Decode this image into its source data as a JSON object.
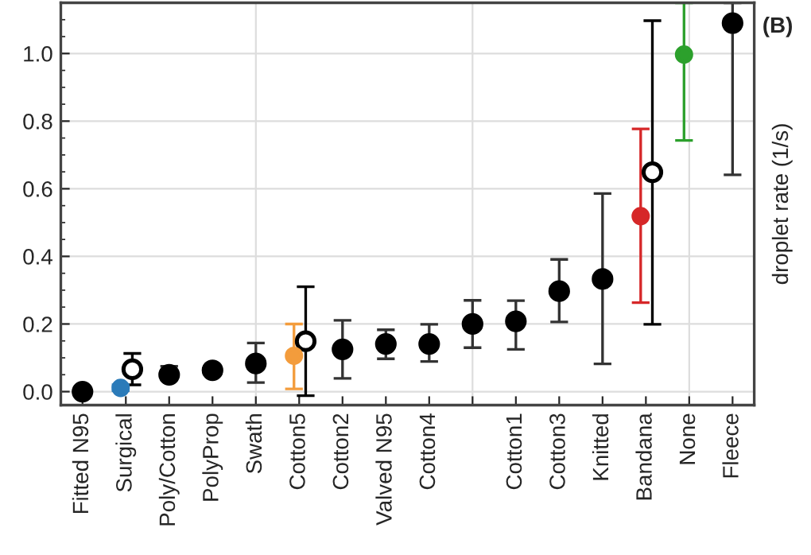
{
  "chart_data": {
    "type": "scatter",
    "categories": [
      "Fitted N95",
      "Surgical",
      "Poly/Cotton",
      "PolyProp",
      "Swath",
      "Cotton5",
      "Cotton2",
      "Valved N95",
      "Cotton4",
      null,
      "Cotton1",
      "Cotton3",
      "Knitted",
      "Bandana",
      "None",
      "Fleece"
    ],
    "series": [
      {
        "color": "#000000",
        "values": [
          0.0,
          null,
          0.05,
          0.063,
          0.083,
          null,
          0.125,
          0.141,
          0.141,
          0.2,
          0.208,
          0.297,
          0.333,
          null,
          null,
          1.09
        ],
        "errors": [
          null,
          null,
          [
            0.035,
            0.075
          ],
          null,
          [
            0.027,
            0.144
          ],
          null,
          [
            0.039,
            0.211
          ],
          [
            0.097,
            0.183
          ],
          [
            0.089,
            0.199
          ],
          [
            0.13,
            0.27
          ],
          [
            0.125,
            0.269
          ],
          [
            0.206,
            0.391
          ],
          [
            0.082,
            0.586
          ],
          null,
          null,
          [
            0.641,
            1.15
          ]
        ]
      },
      {
        "color": "#000000",
        "values": [
          null,
          0.066,
          null,
          null,
          null,
          0.149,
          null,
          null,
          null,
          null,
          null,
          null,
          null,
          0.649,
          null,
          null
        ],
        "errors": [
          null,
          [
            0.02,
            0.113
          ],
          null,
          null,
          null,
          [
            -0.012,
            0.31
          ],
          null,
          null,
          null,
          null,
          null,
          null,
          null,
          [
            0.199,
            1.097
          ],
          null,
          null
        ]
      },
      {
        "color": "#2b7bb9",
        "values": [
          null,
          0.011,
          null,
          null,
          null,
          null,
          null,
          null,
          null,
          null,
          null,
          null,
          null,
          null,
          null,
          null
        ],
        "errors": [
          null,
          [
            0.003,
            0.02
          ],
          null,
          null,
          null,
          null,
          null,
          null,
          null,
          null,
          null,
          null,
          null,
          null,
          null,
          null
        ]
      },
      {
        "color": "#f39c3c",
        "values": [
          null,
          null,
          null,
          null,
          null,
          0.106,
          null,
          null,
          null,
          null,
          null,
          null,
          null,
          null,
          null,
          null
        ],
        "errors": [
          null,
          null,
          null,
          null,
          null,
          [
            0.008,
            0.2
          ],
          null,
          null,
          null,
          null,
          null,
          null,
          null,
          null,
          null,
          null
        ]
      },
      {
        "color": "#d62728",
        "values": [
          null,
          null,
          null,
          null,
          null,
          null,
          null,
          null,
          null,
          null,
          null,
          null,
          null,
          0.519,
          null,
          null
        ],
        "errors": [
          null,
          null,
          null,
          null,
          null,
          null,
          null,
          null,
          null,
          null,
          null,
          null,
          null,
          [
            0.263,
            0.777
          ],
          null,
          null
        ]
      },
      {
        "color": "#2ca02c",
        "values": [
          null,
          null,
          null,
          null,
          null,
          null,
          null,
          null,
          null,
          null,
          null,
          null,
          null,
          null,
          0.997,
          null
        ],
        "errors": [
          null,
          null,
          null,
          null,
          null,
          null,
          null,
          null,
          null,
          null,
          null,
          null,
          null,
          null,
          [
            0.743,
            1.15
          ],
          null
        ]
      }
    ],
    "ylim": [
      -0.04,
      1.15
    ],
    "yticks": [
      {
        "value": 0.0,
        "label": "0.0"
      },
      0.2,
      0.4,
      0.6,
      0.8,
      {
        "value": 1.0,
        "label": "1.0"
      }
    ],
    "ylabel": "droplet rate (1/s)",
    "annotations": [
      "(B)"
    ],
    "grid": true,
    "marker": "circle"
  }
}
